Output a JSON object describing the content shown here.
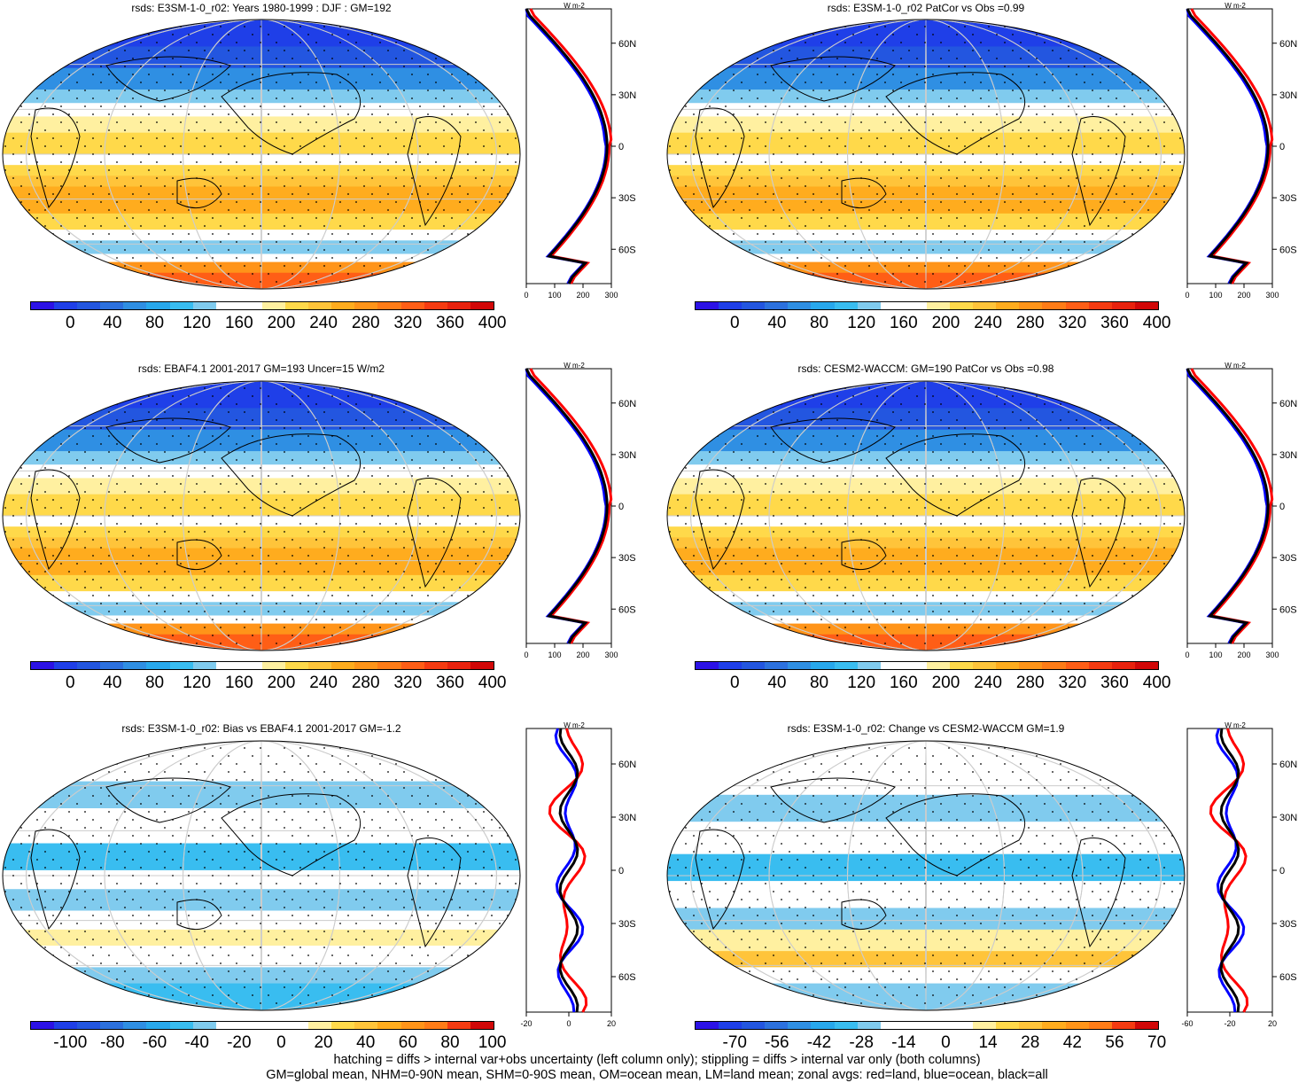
{
  "panels": [
    {
      "title": "rsds: E3SM-1-0_r02: Years 1980-1999 : DJF : GM=192",
      "palette": "abs",
      "cb_labels": [
        "0",
        "40",
        "80",
        "120",
        "160",
        "200",
        "240",
        "280",
        "320",
        "360",
        "400"
      ],
      "zonal_xticks": [
        "0",
        "100",
        "200",
        "300"
      ],
      "zonal_yticks": [
        "60N",
        "30N",
        "0",
        "30S",
        "60S"
      ],
      "zonal_unit": "W m-2"
    },
    {
      "title": "rsds: E3SM-1-0_r02 PatCor vs Obs =0.99",
      "palette": "abs",
      "cb_labels": [
        "0",
        "40",
        "80",
        "120",
        "160",
        "200",
        "240",
        "280",
        "320",
        "360",
        "400"
      ],
      "zonal_xticks": [
        "0",
        "100",
        "200",
        "300"
      ],
      "zonal_yticks": [
        "60N",
        "30N",
        "0",
        "30S",
        "60S"
      ],
      "zonal_unit": "W m-2"
    },
    {
      "title": "rsds: EBAF4.1 2001-2017 GM=193 Uncer=15 W/m2",
      "palette": "abs",
      "cb_labels": [
        "0",
        "40",
        "80",
        "120",
        "160",
        "200",
        "240",
        "280",
        "320",
        "360",
        "400"
      ],
      "zonal_xticks": [
        "0",
        "100",
        "200",
        "300"
      ],
      "zonal_yticks": [
        "60N",
        "30N",
        "0",
        "30S",
        "60S"
      ],
      "zonal_unit": "W m-2"
    },
    {
      "title": "rsds: CESM2-WACCM: GM=190 PatCor vs Obs =0.98",
      "palette": "abs",
      "cb_labels": [
        "0",
        "40",
        "80",
        "120",
        "160",
        "200",
        "240",
        "280",
        "320",
        "360",
        "400"
      ],
      "zonal_xticks": [
        "0",
        "100",
        "200",
        "300"
      ],
      "zonal_yticks": [
        "60N",
        "30N",
        "0",
        "30S",
        "60S"
      ],
      "zonal_unit": "W m-2"
    },
    {
      "title": "rsds: E3SM-1-0_r02: Bias vs EBAF4.1 2001-2017 GM=-1.2",
      "palette": "diff",
      "cb_labels": [
        "-100",
        "-80",
        "-60",
        "-40",
        "-20",
        "0",
        "20",
        "40",
        "60",
        "80",
        "100"
      ],
      "zonal_xticks": [
        "-20",
        "0",
        "20"
      ],
      "zonal_yticks": [
        "60N",
        "30N",
        "0",
        "30S",
        "60S"
      ],
      "zonal_unit": "W m-2"
    },
    {
      "title": "rsds: E3SM-1-0_r02: Change vs CESM2-WACCM GM=1.9",
      "palette": "diff",
      "cb_labels": [
        "-70",
        "-56",
        "-42",
        "-28",
        "-14",
        "0",
        "14",
        "28",
        "42",
        "56",
        "70"
      ],
      "zonal_xticks": [
        "-60",
        "-20",
        "20"
      ],
      "zonal_yticks": [
        "60N",
        "30N",
        "0",
        "30S",
        "60S"
      ],
      "zonal_unit": "W m-2"
    }
  ],
  "colors": {
    "abs": [
      "#2c12e6",
      "#1f3fe8",
      "#2356e0",
      "#2c71de",
      "#2f8fe3",
      "#28a8ec",
      "#39bdf0",
      "#80cbee",
      "#ffffff",
      "#ffffff",
      "#fff0a0",
      "#ffd94a",
      "#ffc43a",
      "#ffac1e",
      "#ff9419",
      "#ff7c17",
      "#ff5e16",
      "#f53b11",
      "#e8220d",
      "#d10707"
    ],
    "diff": [
      "#2c12e6",
      "#1f3fe8",
      "#2356e0",
      "#2c71de",
      "#2f8fe3",
      "#28a8ec",
      "#39bdf0",
      "#80cbee",
      "#ffffff",
      "#ffffff",
      "#ffffff",
      "#ffffff",
      "#fff0a0",
      "#ffd94a",
      "#ffc43a",
      "#ffac1e",
      "#ff9419",
      "#ff7c17",
      "#f53b11",
      "#d10707"
    ],
    "zonal_land": "#ff0000",
    "zonal_ocean": "#0000ff",
    "zonal_all": "#000000"
  },
  "footer": {
    "line1": "hatching = diffs > internal var+obs uncertainty (left column only); stippling = diffs > internal var only (both columns)",
    "line2": "GM=global mean, NHM=0-90N mean, SHM=0-90S mean, OM=ocean mean, LM=land mean; zonal avgs: red=land, blue=ocean, black=all"
  }
}
